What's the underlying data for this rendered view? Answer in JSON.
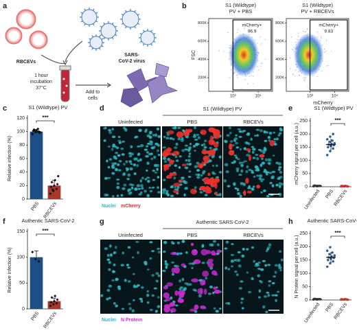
{
  "chart_data": [
    {
      "type": "flow",
      "panel": "b",
      "title": [
        "S1 (Wildtype)",
        "PV + PBS"
      ],
      "ylabel": "FSC",
      "xscale": "log",
      "xlim": [
        110,
        37000
      ],
      "xticks": [
        {
          "value": 1000,
          "label": "10³"
        },
        {
          "value": 10000,
          "label": "10⁴"
        }
      ],
      "ylim": [
        50000,
        850000
      ],
      "yticks": [
        {
          "value": 200000,
          "label": "200K"
        },
        {
          "value": 400000,
          "label": "400K"
        },
        {
          "value": 600000,
          "label": "600K"
        },
        {
          "value": 800000,
          "label": "800K"
        }
      ],
      "gate": {
        "xmin": 1000,
        "label": "mCherry+",
        "value": 96.9
      }
    },
    {
      "type": "flow",
      "title": [
        "S1 (Wildtype)",
        "PV + RBCEVs"
      ],
      "xlabel": "mCherry",
      "xscale": "log",
      "xlim": [
        110,
        37000
      ],
      "xticks": [
        {
          "value": 1000,
          "label": "10³"
        },
        {
          "value": 10000,
          "label": "10⁴"
        }
      ],
      "ylim": [
        50000,
        850000
      ],
      "yticks": [
        {
          "value": 200000,
          "label": "200K"
        },
        {
          "value": 400000,
          "label": "400K"
        },
        {
          "value": 600000,
          "label": "600K"
        },
        {
          "value": 800000,
          "label": "800K"
        }
      ],
      "gate": {
        "xmin": 1000,
        "label": "mCherry+",
        "value": 9.83
      }
    },
    {
      "type": "bar",
      "panel": "c",
      "title": "S1 (Wildtype) PV",
      "ylabel": "Relative infection (%)",
      "categories": [
        "PBS",
        "RBCEVs"
      ],
      "values": [
        100,
        20
      ],
      "errors": [
        3,
        8
      ],
      "colors": [
        "#1d4f86",
        "#a8362b"
      ],
      "points": [
        [
          97,
          99,
          100,
          101,
          102,
          98,
          103,
          100,
          99,
          101,
          104,
          96
        ],
        [
          8,
          12,
          15,
          18,
          20,
          22,
          25,
          28,
          34,
          14
        ]
      ],
      "ylim": [
        0,
        120
      ],
      "yticks": [
        0,
        20,
        40,
        60,
        80,
        100,
        120
      ],
      "annotation": "***"
    },
    {
      "type": "dot",
      "panel": "e",
      "title": "S1 (Wildtype) PV",
      "ylabel": "mCherry signal per cell (a.u.)",
      "categories": [
        "Uninfected",
        "PBS",
        "RBCEVs"
      ],
      "values": [
        3,
        160,
        2
      ],
      "errors": [
        1,
        22,
        1
      ],
      "colors": [
        "#333333",
        "#1d4f86",
        "#c0392b"
      ],
      "points": [
        [
          2,
          3,
          3,
          4,
          2,
          3,
          4,
          3
        ],
        [
          120,
          135,
          145,
          150,
          155,
          158,
          160,
          162,
          165,
          170,
          175,
          180,
          190,
          200
        ],
        [
          1,
          2,
          2,
          3,
          2,
          1,
          2,
          3
        ]
      ],
      "ylim": [
        0,
        250
      ],
      "yticks": [
        0,
        50,
        100,
        150,
        200,
        250
      ],
      "annotation": "***"
    },
    {
      "type": "bar",
      "panel": "f",
      "title": "Authentic SARS-CoV-2",
      "ylabel": "Relative infection (%)",
      "categories": [
        "PBS",
        "RBCEVs"
      ],
      "values": [
        100,
        15
      ],
      "errors": [
        12,
        6
      ],
      "colors": [
        "#1d4f86",
        "#a8362b"
      ],
      "points": [
        [
          110,
          96,
          92
        ],
        [
          6,
          9,
          11,
          13,
          15,
          18,
          22,
          25
        ]
      ],
      "ylim": [
        0,
        150
      ],
      "yticks": [
        0,
        50,
        100,
        150
      ],
      "annotation": "***"
    },
    {
      "type": "dot",
      "panel": "h",
      "title": "Authentic SARS-CoV-2",
      "ylabel": "N Protein signal per cell (a.u.)",
      "categories": [
        "Uninfected",
        "PBS",
        "RBCEVs"
      ],
      "values": [
        3,
        160,
        2
      ],
      "errors": [
        1,
        20,
        1
      ],
      "colors": [
        "#333333",
        "#1d4f86",
        "#c0392b"
      ],
      "points": [
        [
          2,
          3,
          3,
          4,
          2,
          3,
          4,
          3
        ],
        [
          125,
          138,
          145,
          150,
          155,
          158,
          160,
          163,
          167,
          172,
          178,
          185,
          198
        ],
        [
          1,
          2,
          2,
          3,
          2,
          1,
          2,
          3
        ]
      ],
      "ylim": [
        0,
        250
      ],
      "yticks": [
        0,
        50,
        100,
        150,
        200,
        250
      ],
      "annotation": "***"
    }
  ],
  "schematic": {
    "panel": "a",
    "rbc": "RBCEVs",
    "virus": [
      "SARS-",
      "CoV-2 virus"
    ],
    "incubation": [
      "1 hour",
      "incubation",
      "37°C"
    ],
    "step": [
      "Add to",
      "cells"
    ]
  },
  "micrographs": [
    {
      "panel": "d",
      "header": "S1 (Wildtype) PV",
      "columns": [
        "Uninfected",
        "PBS",
        "RBCEVs"
      ],
      "legend": [
        "Nuclei",
        "mCherry"
      ]
    },
    {
      "panel": "g",
      "header": "Authentic SARS-CoV-2",
      "columns": [
        "Uninfected",
        "PBS",
        "RBCEVs"
      ],
      "legend": [
        "Nuclei",
        "N Protein"
      ]
    }
  ]
}
